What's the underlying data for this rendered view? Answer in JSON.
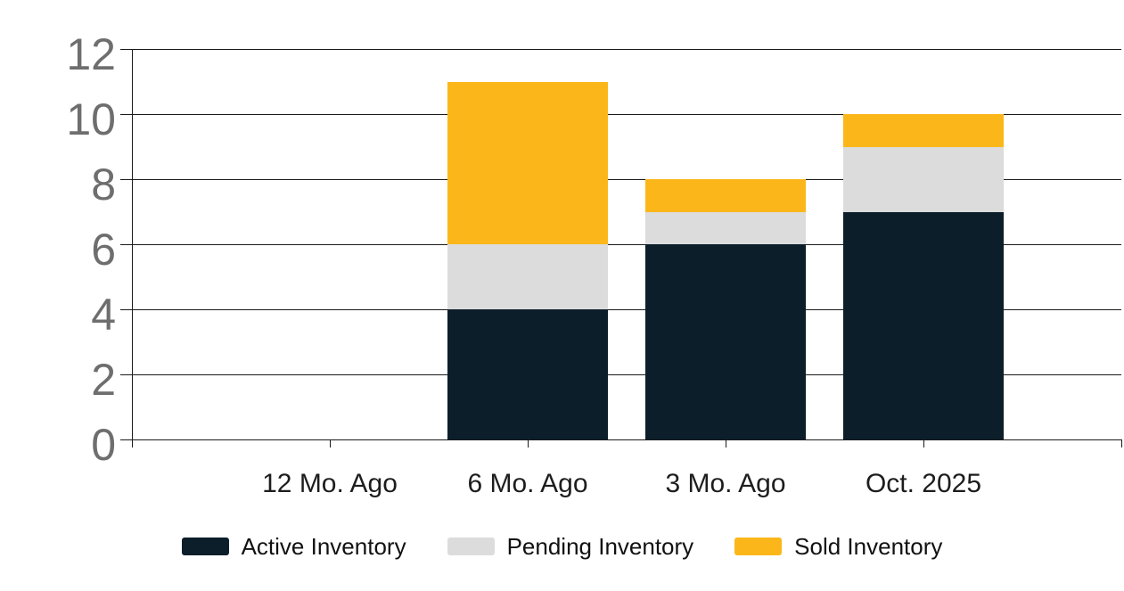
{
  "chart_data": {
    "type": "bar",
    "stacked": true,
    "title": "",
    "xlabel": "",
    "ylabel": "",
    "categories": [
      "12 Mo. Ago",
      "6 Mo. Ago",
      "3 Mo. Ago",
      "Oct. 2025"
    ],
    "series": [
      {
        "name": "Active Inventory",
        "color": "#0c1e2a",
        "values": [
          0,
          4,
          6,
          7
        ]
      },
      {
        "name": "Pending Inventory",
        "color": "#dcdcdd",
        "values": [
          0,
          2,
          1,
          2
        ]
      },
      {
        "name": "Sold Inventory",
        "color": "#fbb71a",
        "values": [
          0,
          5,
          1,
          1
        ]
      }
    ],
    "stack_totals": [
      0,
      11,
      8,
      10
    ],
    "y_ticks": [
      0,
      2,
      4,
      6,
      8,
      10,
      12
    ],
    "ylim": [
      0,
      12
    ],
    "grid": true,
    "legend_position": "bottom",
    "legend_items": [
      "Active Inventory",
      "Pending Inventory",
      "Sold Inventory"
    ]
  },
  "colors": {
    "background": "#ffffff",
    "axis_line": "#1a1a1a",
    "gridline": "#1a1a1a",
    "y_tick_label": "#6e6e6e",
    "x_tick_label": "#1d1d1d",
    "legend_text": "#111111",
    "active_inventory": "#0c1e2a",
    "pending_inventory": "#dcdcdd",
    "sold_inventory": "#fbb71a"
  }
}
